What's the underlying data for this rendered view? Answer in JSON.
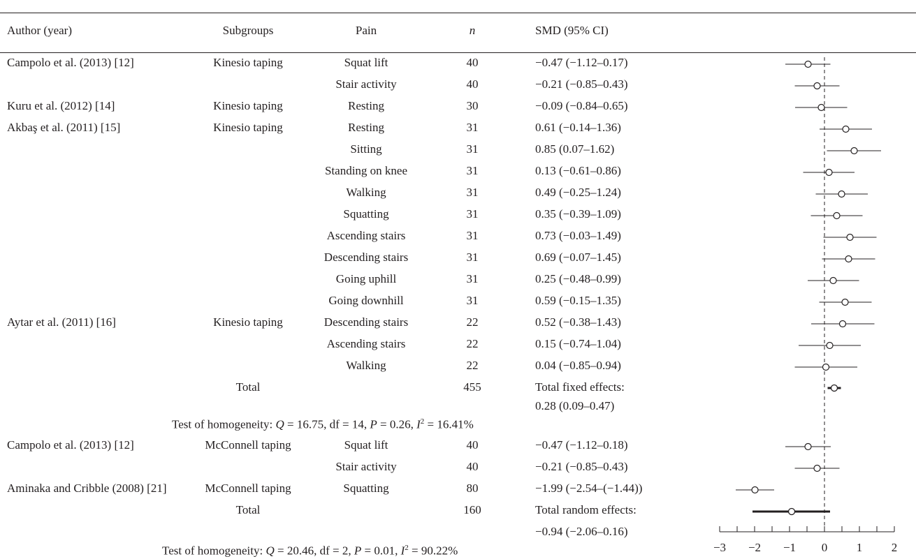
{
  "header": {
    "author": "Author (year)",
    "subgroups": "Subgroups",
    "pain": "Pain",
    "n": "n",
    "smd": "SMD (95% CI)"
  },
  "rows": [
    {
      "author": "Campolo et al. (2013) [12]",
      "subgroup": "Kinesio taping",
      "pain": "Squat lift",
      "n": "40",
      "smd": "−0.47 (−1.12–0.17)"
    },
    {
      "author": "",
      "subgroup": "",
      "pain": "Stair activity",
      "n": "40",
      "smd": "−0.21 (−0.85–0.43)"
    },
    {
      "author": "Kuru et al. (2012) [14]",
      "subgroup": "Kinesio taping",
      "pain": "Resting",
      "n": "30",
      "smd": "−0.09 (−0.84–0.65)"
    },
    {
      "author": "Akbaş et al. (2011) [15]",
      "subgroup": "Kinesio taping",
      "pain": "Resting",
      "n": "31",
      "smd": "0.61 (−0.14–1.36)"
    },
    {
      "author": "",
      "subgroup": "",
      "pain": "Sitting",
      "n": "31",
      "smd": "0.85 (0.07–1.62)"
    },
    {
      "author": "",
      "subgroup": "",
      "pain": "Standing on knee",
      "n": "31",
      "smd": "0.13 (−0.61–0.86)"
    },
    {
      "author": "",
      "subgroup": "",
      "pain": "Walking",
      "n": "31",
      "smd": "0.49 (−0.25–1.24)"
    },
    {
      "author": "",
      "subgroup": "",
      "pain": "Squatting",
      "n": "31",
      "smd": "0.35 (−0.39–1.09)"
    },
    {
      "author": "",
      "subgroup": "",
      "pain": "Ascending stairs",
      "n": "31",
      "smd": "0.73 (−0.03–1.49)"
    },
    {
      "author": "",
      "subgroup": "",
      "pain": "Descending stairs",
      "n": "31",
      "smd": "0.69 (−0.07–1.45)"
    },
    {
      "author": "",
      "subgroup": "",
      "pain": "Going uphill",
      "n": "31",
      "smd": "0.25 (−0.48–0.99)"
    },
    {
      "author": "",
      "subgroup": "",
      "pain": "Going downhill",
      "n": "31",
      "smd": "0.59 (−0.15–1.35)"
    },
    {
      "author": "Aytar et al. (2011) [16]",
      "subgroup": "Kinesio taping",
      "pain": "Descending stairs",
      "n": "22",
      "smd": "0.52 (−0.38–1.43)"
    },
    {
      "author": "",
      "subgroup": "",
      "pain": "Ascending stairs",
      "n": "22",
      "smd": "0.15 (−0.74–1.04)"
    },
    {
      "author": "",
      "subgroup": "",
      "pain": "Walking",
      "n": "22",
      "smd": "0.04 (−0.85–0.94)"
    },
    {
      "author": "",
      "subgroup": "Total",
      "pain": "",
      "n": "455",
      "smd": "Total fixed effects:"
    },
    {
      "author": "",
      "subgroup": "",
      "pain": "",
      "n": "",
      "smd": "0.28 (0.09–0.47)"
    },
    {
      "author": "Campolo et al. (2013) [12]",
      "subgroup": "McConnell taping",
      "pain": "Squat lift",
      "n": "40",
      "smd": "−0.47 (−1.12–0.18)"
    },
    {
      "author": "",
      "subgroup": "",
      "pain": "Stair activity",
      "n": "40",
      "smd": "−0.21 (−0.85–0.43)"
    },
    {
      "author": "Aminaka and Cribble (2008) [21]",
      "subgroup": "McConnell taping",
      "pain": "Squatting",
      "n": "80",
      "smd": "−1.99 (−2.54–(−1.44))"
    },
    {
      "author": "",
      "subgroup": "Total",
      "pain": "",
      "n": "160",
      "smd": "Total random effects:"
    },
    {
      "author": "",
      "subgroup": "",
      "pain": "",
      "n": "",
      "smd": "−0.94 (−2.06–0.16)"
    }
  ],
  "homogeneity_1": {
    "prefix": "Test of homogeneity: ",
    "Q": "Q",
    "rest1": " = 16.75, df = 14, ",
    "P": "P",
    "rest2": " = 0.26, ",
    "I": "I",
    "sup": "2",
    "rest3": " = 16.41%"
  },
  "homogeneity_2": {
    "prefix": "Test of homogeneity: ",
    "Q": "Q",
    "rest1": " = 20.46, df = 2, ",
    "P": "P",
    "rest2": " = 0.01, ",
    "I": "I",
    "sup": "2",
    "rest3": " = 90.22%"
  },
  "chart_data": {
    "type": "forest",
    "xlim": [
      -3,
      2
    ],
    "xticks": [
      "−3",
      "−2",
      "−1",
      "0",
      "1",
      "2"
    ],
    "reference_line": 0,
    "studies": [
      {
        "est": -0.47,
        "lo": -1.12,
        "hi": 0.17
      },
      {
        "est": -0.21,
        "lo": -0.85,
        "hi": 0.43
      },
      {
        "est": -0.09,
        "lo": -0.84,
        "hi": 0.65
      },
      {
        "est": 0.61,
        "lo": -0.14,
        "hi": 1.36
      },
      {
        "est": 0.85,
        "lo": 0.07,
        "hi": 1.62
      },
      {
        "est": 0.13,
        "lo": -0.61,
        "hi": 0.86
      },
      {
        "est": 0.49,
        "lo": -0.25,
        "hi": 1.24
      },
      {
        "est": 0.35,
        "lo": -0.39,
        "hi": 1.09
      },
      {
        "est": 0.73,
        "lo": -0.03,
        "hi": 1.49
      },
      {
        "est": 0.69,
        "lo": -0.07,
        "hi": 1.45
      },
      {
        "est": 0.25,
        "lo": -0.48,
        "hi": 0.99
      },
      {
        "est": 0.59,
        "lo": -0.15,
        "hi": 1.35
      },
      {
        "est": 0.52,
        "lo": -0.38,
        "hi": 1.43
      },
      {
        "est": 0.15,
        "lo": -0.74,
        "hi": 1.04
      },
      {
        "est": 0.04,
        "lo": -0.85,
        "hi": 0.94
      },
      {
        "est": 0.28,
        "lo": 0.09,
        "hi": 0.47,
        "summary": true
      },
      null,
      {
        "est": -0.47,
        "lo": -1.12,
        "hi": 0.18
      },
      {
        "est": -0.21,
        "lo": -0.85,
        "hi": 0.43
      },
      {
        "est": -1.99,
        "lo": -2.54,
        "hi": -1.44
      },
      {
        "est": -0.94,
        "lo": -2.06,
        "hi": 0.16,
        "summary": true
      },
      null
    ]
  }
}
